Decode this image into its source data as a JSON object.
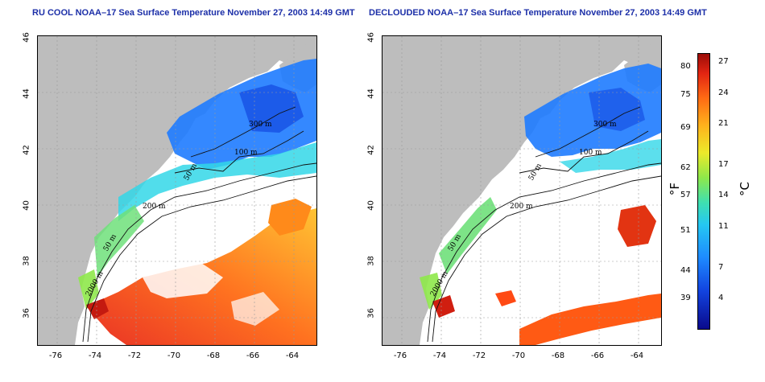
{
  "titles": {
    "left": "RU COOL NOAA–17 Sea Surface Temperature November 27, 2003 14:49 GMT",
    "right": "DECLOUDED NOAA–17 Sea Surface Temperature November 27, 2003 14:49 GMT"
  },
  "axes": {
    "lat_ticks": [
      "46",
      "44",
      "42",
      "40",
      "38",
      "36"
    ],
    "lon_ticks": [
      "-76",
      "-74",
      "-72",
      "-70",
      "-68",
      "-66",
      "-64"
    ]
  },
  "contour_labels": {
    "c300": "300 m",
    "c100": "100 m",
    "c50a": "50 m",
    "c200": "200 m",
    "c50b": "50 m",
    "c2000": "2000 m"
  },
  "colorbar": {
    "fahrenheit_ticks": [
      "80",
      "75",
      "69",
      "62",
      "57",
      "51",
      "44",
      "39"
    ],
    "celsius_ticks": [
      "27",
      "24",
      "21",
      "17",
      "14",
      "11",
      "7",
      "4"
    ],
    "fahrenheit_unit": "°F",
    "celsius_unit": "°C"
  },
  "colors": {
    "land": "#bdbdbd",
    "no_data": "#ffffff",
    "title": "#1c2fa8",
    "cold": "#1e6fff",
    "warm": "#ff3c1e"
  }
}
